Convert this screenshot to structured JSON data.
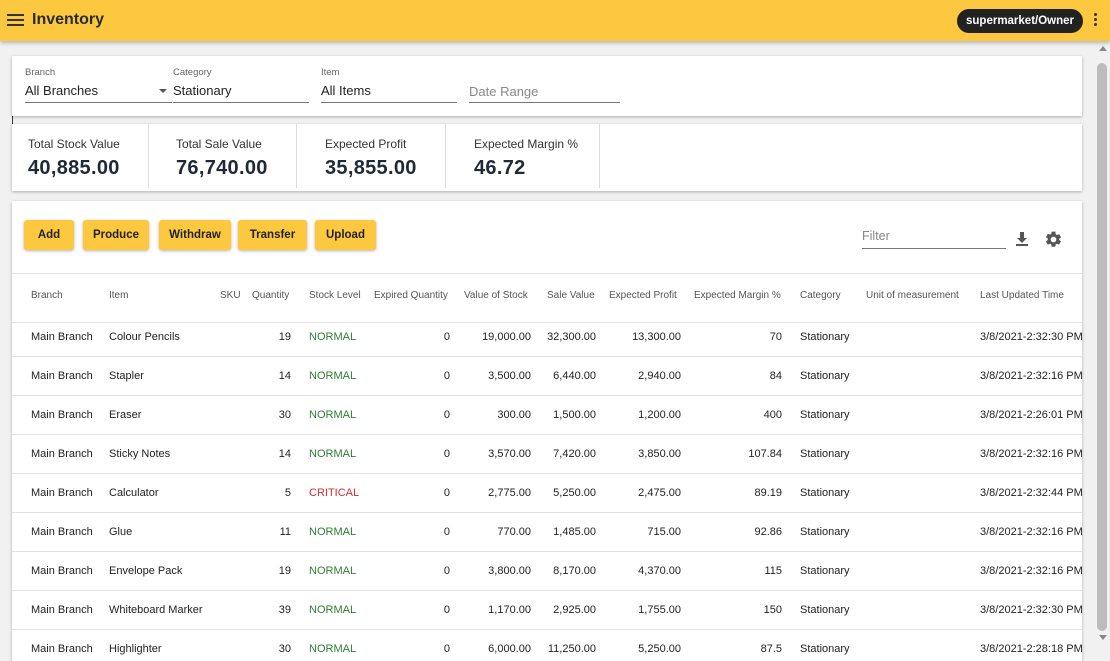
{
  "app": {
    "title": "Inventory",
    "user_chip": "supermarket/Owner"
  },
  "filters": {
    "branch": {
      "label": "Branch",
      "value": "All Branches"
    },
    "category": {
      "label": "Category",
      "value": "Stationary"
    },
    "item": {
      "label": "Item",
      "value": "All Items"
    },
    "date_range": {
      "placeholder": "Date Range"
    }
  },
  "stats": [
    {
      "label": "Total Stock Value",
      "value": "40,885.00"
    },
    {
      "label": "Total Sale Value",
      "value": "76,740.00"
    },
    {
      "label": "Expected Profit",
      "value": "35,855.00"
    },
    {
      "label": "Expected Margin %",
      "value": "46.72"
    }
  ],
  "toolbar": {
    "add": "Add",
    "produce": "Produce",
    "withdraw": "Withdraw",
    "transfer": "Transfer",
    "upload": "Upload",
    "filter_placeholder": "Filter",
    "download_icon": "download-icon",
    "settings_icon": "gear-icon"
  },
  "colors": {
    "accent": "#fcc83f",
    "normal": "#2e7d32",
    "critical": "#d32f2f"
  },
  "table": {
    "columns": [
      "Branch",
      "Item",
      "SKU",
      "Quantity",
      "Stock Level",
      "Expired Quantity",
      "Value of Stock",
      "Sale Value",
      "Expected Profit",
      "Expected Margin %",
      "Category",
      "Unit of measurement",
      "Last Updated Time"
    ],
    "rows": [
      [
        "Main Branch",
        "Colour Pencils",
        "",
        "19",
        "NORMAL",
        "0",
        "19,000.00",
        "32,300.00",
        "13,300.00",
        "70",
        "Stationary",
        "",
        "3/8/2021-2:32:30 PM"
      ],
      [
        "Main Branch",
        "Stapler",
        "",
        "14",
        "NORMAL",
        "0",
        "3,500.00",
        "6,440.00",
        "2,940.00",
        "84",
        "Stationary",
        "",
        "3/8/2021-2:32:16 PM"
      ],
      [
        "Main Branch",
        "Eraser",
        "",
        "30",
        "NORMAL",
        "0",
        "300.00",
        "1,500.00",
        "1,200.00",
        "400",
        "Stationary",
        "",
        "3/8/2021-2:26:01 PM"
      ],
      [
        "Main Branch",
        "Sticky Notes",
        "",
        "14",
        "NORMAL",
        "0",
        "3,570.00",
        "7,420.00",
        "3,850.00",
        "107.84",
        "Stationary",
        "",
        "3/8/2021-2:32:16 PM"
      ],
      [
        "Main Branch",
        "Calculator",
        "",
        "5",
        "CRITICAL",
        "0",
        "2,775.00",
        "5,250.00",
        "2,475.00",
        "89.19",
        "Stationary",
        "",
        "3/8/2021-2:32:44 PM"
      ],
      [
        "Main Branch",
        "Glue",
        "",
        "11",
        "NORMAL",
        "0",
        "770.00",
        "1,485.00",
        "715.00",
        "92.86",
        "Stationary",
        "",
        "3/8/2021-2:32:16 PM"
      ],
      [
        "Main Branch",
        "Envelope Pack",
        "",
        "19",
        "NORMAL",
        "0",
        "3,800.00",
        "8,170.00",
        "4,370.00",
        "115",
        "Stationary",
        "",
        "3/8/2021-2:32:16 PM"
      ],
      [
        "Main Branch",
        "Whiteboard Marker",
        "",
        "39",
        "NORMAL",
        "0",
        "1,170.00",
        "2,925.00",
        "1,755.00",
        "150",
        "Stationary",
        "",
        "3/8/2021-2:32:30 PM"
      ],
      [
        "Main Branch",
        "Highlighter",
        "",
        "30",
        "NORMAL",
        "0",
        "6,000.00",
        "11,250.00",
        "5,250.00",
        "87.5",
        "Stationary",
        "",
        "3/8/2021-2:28:18 PM"
      ]
    ]
  }
}
